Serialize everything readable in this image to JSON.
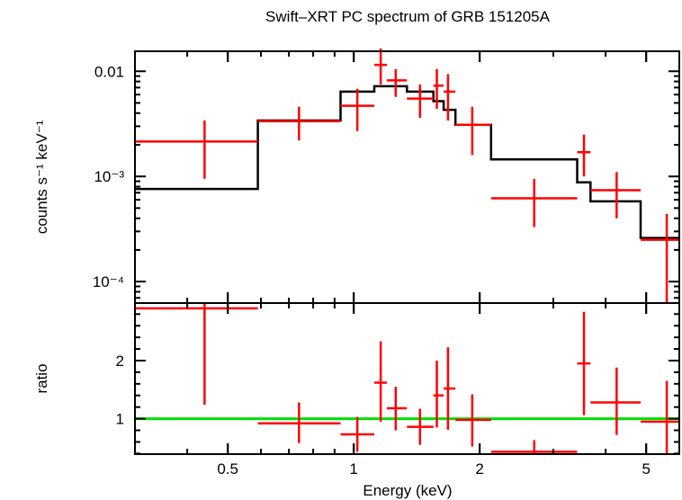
{
  "chart_data": {
    "type": "scatter",
    "title": "Swift–XRT PC spectrum of GRB 151205A",
    "xlabel": "Energy (keV)",
    "x_scale": "log",
    "xlim": [
      0.3,
      6.0
    ],
    "x_ticks": [
      {
        "value": 0.5,
        "label": "0.5"
      },
      {
        "value": 1,
        "label": "1"
      },
      {
        "value": 2,
        "label": "2"
      },
      {
        "value": 5,
        "label": "5"
      }
    ],
    "panels": [
      {
        "name": "spectrum",
        "ylabel": "counts s⁻¹ keV⁻¹",
        "y_scale": "log",
        "ylim": [
          6.25e-05,
          0.0155
        ],
        "y_ticks": [
          {
            "value": 0.01,
            "label": "0.01"
          },
          {
            "value": 0.001,
            "label": "10⁻³"
          },
          {
            "value": 0.0001,
            "label": "10⁻⁴"
          }
        ],
        "series": [
          {
            "name": "data",
            "color": "#ff0000",
            "style": "crosses",
            "points": [
              {
                "x": 0.44,
                "xlo": 0.3,
                "xhi": 0.59,
                "y": 0.00215,
                "ylo": 0.00095,
                "yhi": 0.0034
              },
              {
                "x": 0.74,
                "xlo": 0.59,
                "xhi": 0.93,
                "y": 0.00335,
                "ylo": 0.0022,
                "yhi": 0.0046
              },
              {
                "x": 1.02,
                "xlo": 0.93,
                "xhi": 1.12,
                "y": 0.0047,
                "ylo": 0.0027,
                "yhi": 0.0068
              },
              {
                "x": 1.16,
                "xlo": 1.12,
                "xhi": 1.2,
                "y": 0.0115,
                "ylo": 0.0075,
                "yhi": 0.0165
              },
              {
                "x": 1.26,
                "xlo": 1.2,
                "xhi": 1.34,
                "y": 0.0082,
                "ylo": 0.0057,
                "yhi": 0.0105
              },
              {
                "x": 1.44,
                "xlo": 1.34,
                "xhi": 1.55,
                "y": 0.0055,
                "ylo": 0.0036,
                "yhi": 0.0075
              },
              {
                "x": 1.58,
                "xlo": 1.55,
                "xhi": 1.64,
                "y": 0.0073,
                "ylo": 0.0044,
                "yhi": 0.0105
              },
              {
                "x": 1.68,
                "xlo": 1.64,
                "xhi": 1.75,
                "y": 0.0064,
                "ylo": 0.0034,
                "yhi": 0.0094
              },
              {
                "x": 1.92,
                "xlo": 1.75,
                "xhi": 2.13,
                "y": 0.0031,
                "ylo": 0.0016,
                "yhi": 0.0046
              },
              {
                "x": 2.7,
                "xlo": 2.13,
                "xhi": 3.42,
                "y": 0.00062,
                "ylo": 0.00033,
                "yhi": 0.00095
              },
              {
                "x": 3.55,
                "xlo": 3.42,
                "xhi": 3.68,
                "y": 0.0017,
                "ylo": 0.001,
                "yhi": 0.0025
              },
              {
                "x": 4.25,
                "xlo": 3.68,
                "xhi": 4.85,
                "y": 0.00074,
                "ylo": 0.0004,
                "yhi": 0.0011
              },
              {
                "x": 5.6,
                "xlo": 4.85,
                "xhi": 6.0,
                "y": 0.00025,
                "ylo": 6.25e-05,
                "yhi": 0.00044
              }
            ]
          },
          {
            "name": "model",
            "color": "#000000",
            "style": "step",
            "bins": [
              {
                "xlo": 0.3,
                "xhi": 0.59,
                "y": 0.00076
              },
              {
                "xlo": 0.59,
                "xhi": 0.93,
                "y": 0.0034
              },
              {
                "xlo": 0.93,
                "xhi": 1.12,
                "y": 0.0064
              },
              {
                "xlo": 1.12,
                "xhi": 1.2,
                "y": 0.0072
              },
              {
                "xlo": 1.2,
                "xhi": 1.34,
                "y": 0.0072
              },
              {
                "xlo": 1.34,
                "xhi": 1.55,
                "y": 0.0064
              },
              {
                "xlo": 1.55,
                "xhi": 1.64,
                "y": 0.0052
              },
              {
                "xlo": 1.64,
                "xhi": 1.75,
                "y": 0.0043
              },
              {
                "xlo": 1.75,
                "xhi": 2.13,
                "y": 0.0031
              },
              {
                "xlo": 2.13,
                "xhi": 3.42,
                "y": 0.00145
              },
              {
                "xlo": 3.42,
                "xhi": 3.68,
                "y": 0.00088
              },
              {
                "xlo": 3.68,
                "xhi": 4.85,
                "y": 0.00058
              },
              {
                "xlo": 4.85,
                "xhi": 6.0,
                "y": 0.00026
              }
            ]
          }
        ]
      },
      {
        "name": "ratio",
        "ylabel": "ratio",
        "y_scale": "linear",
        "ylim": [
          0.39,
          2.99
        ],
        "y_ticks": [
          {
            "value": 1,
            "label": "1"
          },
          {
            "value": 2,
            "label": "2"
          }
        ],
        "reference_line": {
          "y": 1,
          "color": "#00e000"
        },
        "series": [
          {
            "name": "ratio",
            "color": "#ff0000",
            "style": "crosses",
            "points": [
              {
                "x": 0.44,
                "xlo": 0.3,
                "xhi": 0.59,
                "y": 2.9,
                "ylo": 1.24,
                "yhi": 2.99
              },
              {
                "x": 0.74,
                "xlo": 0.59,
                "xhi": 0.93,
                "y": 0.92,
                "ylo": 0.58,
                "yhi": 1.28
              },
              {
                "x": 1.02,
                "xlo": 0.93,
                "xhi": 1.12,
                "y": 0.73,
                "ylo": 0.43,
                "yhi": 1.03
              },
              {
                "x": 1.16,
                "xlo": 1.12,
                "xhi": 1.2,
                "y": 1.62,
                "ylo": 0.95,
                "yhi": 2.33
              },
              {
                "x": 1.26,
                "xlo": 1.2,
                "xhi": 1.34,
                "y": 1.18,
                "ylo": 0.8,
                "yhi": 1.55
              },
              {
                "x": 1.44,
                "xlo": 1.34,
                "xhi": 1.55,
                "y": 0.86,
                "ylo": 0.55,
                "yhi": 1.17
              },
              {
                "x": 1.58,
                "xlo": 1.55,
                "xhi": 1.64,
                "y": 1.4,
                "ylo": 0.85,
                "yhi": 2.0
              },
              {
                "x": 1.68,
                "xlo": 1.64,
                "xhi": 1.75,
                "y": 1.52,
                "ylo": 0.81,
                "yhi": 2.23
              },
              {
                "x": 1.92,
                "xlo": 1.75,
                "xhi": 2.13,
                "y": 0.98,
                "ylo": 0.52,
                "yhi": 1.42
              },
              {
                "x": 2.7,
                "xlo": 2.13,
                "xhi": 3.42,
                "y": 0.43,
                "ylo": 0.39,
                "yhi": 0.63
              },
              {
                "x": 3.55,
                "xlo": 3.42,
                "xhi": 3.68,
                "y": 1.95,
                "ylo": 1.06,
                "yhi": 2.84
              },
              {
                "x": 4.25,
                "xlo": 3.68,
                "xhi": 4.85,
                "y": 1.28,
                "ylo": 0.72,
                "yhi": 1.88
              },
              {
                "x": 5.6,
                "xlo": 4.85,
                "xhi": 6.0,
                "y": 0.95,
                "ylo": 0.39,
                "yhi": 1.65
              }
            ]
          }
        ]
      }
    ]
  }
}
